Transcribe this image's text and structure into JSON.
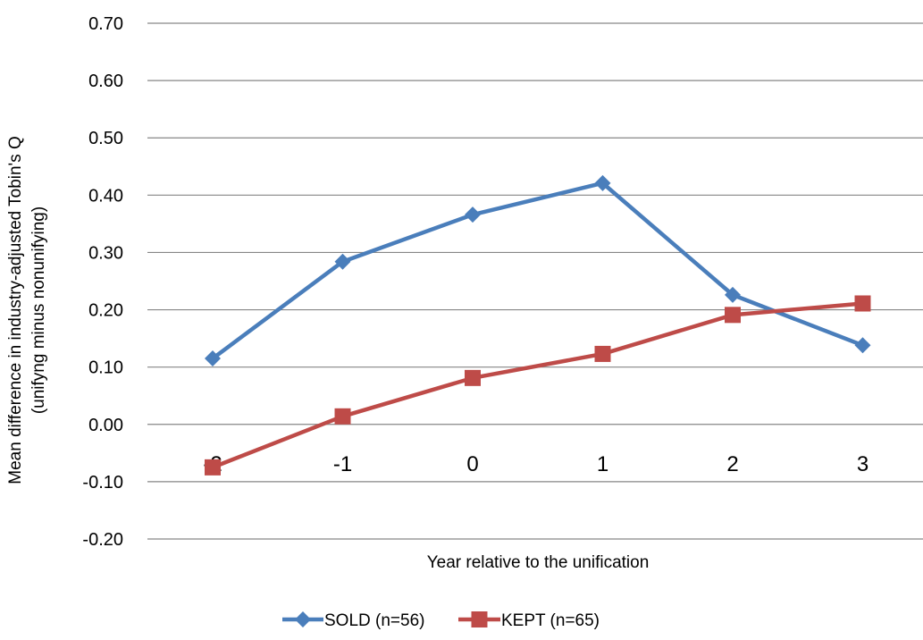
{
  "chart_data": {
    "type": "line",
    "title": "",
    "xlabel": "Year relative to the unification",
    "ylabel": "Mean difference in industry-adjusted Tobin's Q",
    "ylabel_line2": "(unifyng minus nonunifying)",
    "categories": [
      "-2",
      "-1",
      "0",
      "1",
      "2",
      "3"
    ],
    "ylim": [
      -0.2,
      0.7
    ],
    "yticks": [
      -0.2,
      -0.1,
      0.0,
      0.1,
      0.2,
      0.3,
      0.4,
      0.5,
      0.6,
      0.7
    ],
    "ytick_labels": [
      "-0.20",
      "-0.10",
      "0.00",
      "0.10",
      "0.20",
      "0.30",
      "0.40",
      "0.50",
      "0.60",
      "0.70"
    ],
    "grid": true,
    "legend_position": "bottom",
    "series": [
      {
        "name": "SOLD (n=56)",
        "marker": "diamond",
        "color": "#4a7ebb",
        "values": [
          0.115,
          0.284,
          0.366,
          0.421,
          0.226,
          0.138
        ]
      },
      {
        "name": "KEPT (n=65)",
        "marker": "square",
        "color": "#be4b48",
        "values": [
          -0.075,
          0.014,
          0.081,
          0.123,
          0.191,
          0.211
        ]
      }
    ]
  }
}
